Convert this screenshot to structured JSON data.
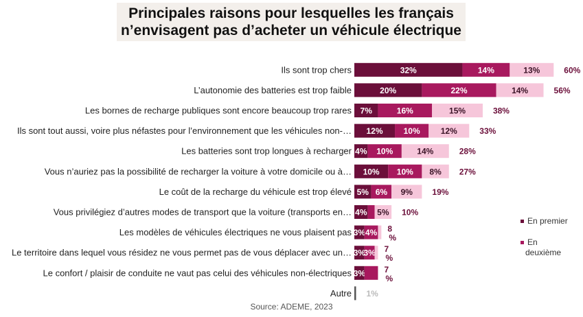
{
  "title_lines": [
    "Principales raisons pour lesquelles les français",
    "n’envisagent pas d’acheter un véhicule électrique"
  ],
  "source": "Source: ADEME, 2023",
  "chart_data": {
    "type": "bar",
    "orientation": "horizontal",
    "stacked": true,
    "unit": "%",
    "categories": [
      "Ils sont trop chers",
      "L’autonomie des batteries est trop faible",
      "Les bornes de recharge publiques sont encore beaucoup trop rares",
      "Ils sont tout aussi, voire plus néfastes pour l’environnement que les véhicules non-…",
      "Les batteries sont trop longues à recharger",
      "Vous n’auriez pas la possibilité de recharger la voiture à votre domicile ou à…",
      "Le coût de la recharge du véhicule est trop élevé",
      "Vous privilégiez d’autres modes de transport que la voiture (transports en…",
      "Les modèles de véhicules électriques ne vous plaisent pas",
      "Le territoire dans lequel vous résidez ne vous permet pas de vous déplacer avec un…",
      "Le confort / plaisir de conduite ne vaut pas celui des véhicules non-électriques",
      "Autre"
    ],
    "series": [
      {
        "name": "En premier",
        "color": "#6b0f3a",
        "values": [
          32,
          20,
          7,
          12,
          4,
          10,
          5,
          4,
          3,
          3,
          3,
          1
        ],
        "labels": [
          "32%",
          "20%",
          "7%",
          "12%",
          "4%",
          "10%",
          "5%",
          "4%",
          "3%",
          "3%",
          "3%",
          ""
        ]
      },
      {
        "name": "En deuxième",
        "color": "#a8195e",
        "values": [
          14,
          22,
          16,
          10,
          10,
          10,
          6,
          2,
          4,
          3,
          4,
          0
        ],
        "labels": [
          "14%",
          "22%",
          "16%",
          "10%",
          "10%",
          "10%",
          "6%",
          "",
          "4%",
          "3%",
          "",
          ""
        ]
      },
      {
        "name": "",
        "color": "#f6c6da",
        "values": [
          13,
          14,
          15,
          12,
          14,
          8,
          9,
          5,
          1,
          1,
          0,
          0
        ],
        "labels": [
          "13%",
          "14%",
          "15%",
          "12%",
          "14%",
          "8%",
          "9%",
          "5%",
          "",
          "",
          "",
          ""
        ]
      }
    ],
    "totals": [
      "60%",
      "56%",
      "38%",
      "33%",
      "28%",
      "27%",
      "19%",
      "10%",
      "8 %",
      "7 %",
      "7 %",
      "1%"
    ],
    "total_colors": [
      "#6b0f3a",
      "#6b0f3a",
      "#6b0f3a",
      "#6b0f3a",
      "#6b0f3a",
      "#6b0f3a",
      "#6b0f3a",
      "#6b0f3a",
      "#6b0f3a",
      "#6b0f3a",
      "#6b0f3a",
      "#bbbbbb"
    ],
    "other_bar_color": "#555555",
    "legend_position": "right",
    "grid": false
  }
}
